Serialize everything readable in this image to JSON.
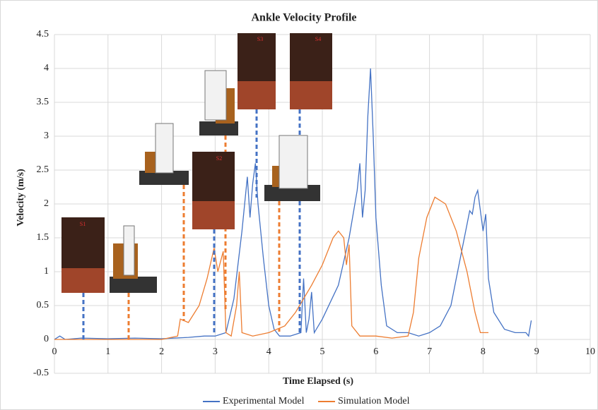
{
  "chart_data": {
    "type": "line",
    "title": "Ankle Velocity Profile",
    "x_label": "Time Elapsed (s)",
    "y_label": "Velocity (m/s)",
    "xlim": [
      0,
      10
    ],
    "xticks": [
      0,
      1,
      2,
      3,
      4,
      5,
      6,
      7,
      8,
      9,
      10
    ],
    "ylim": [
      -0.5,
      4.5
    ],
    "yticks": [
      -0.5,
      0,
      0.5,
      1,
      1.5,
      2,
      2.5,
      3,
      3.5,
      4,
      4.5
    ],
    "grid": true,
    "legend": "bottom",
    "annotations": [
      "S1",
      "S2",
      "S3",
      "S4"
    ],
    "series": [
      {
        "name": "Experimental Model",
        "color": "#4472c4",
        "x": [
          0,
          0.1,
          0.2,
          0.5,
          1.0,
          1.5,
          2.0,
          2.5,
          2.8,
          3.0,
          3.2,
          3.35,
          3.5,
          3.6,
          3.65,
          3.7,
          3.75,
          3.8,
          3.9,
          4.0,
          4.1,
          4.2,
          4.4,
          4.6,
          4.65,
          4.7,
          4.75,
          4.8,
          4.85,
          5.0,
          5.3,
          5.5,
          5.65,
          5.7,
          5.75,
          5.8,
          5.85,
          5.9,
          5.95,
          6.0,
          6.1,
          6.2,
          6.4,
          6.6,
          6.8,
          7.0,
          7.2,
          7.4,
          7.6,
          7.75,
          7.8,
          7.85,
          7.9,
          7.95,
          8.0,
          8.05,
          8.1,
          8.2,
          8.4,
          8.6,
          8.8,
          8.85,
          8.9
        ],
        "values": [
          0,
          0.05,
          0,
          0.02,
          0.01,
          0.02,
          0.01,
          0.03,
          0.05,
          0.05,
          0.1,
          0.6,
          1.6,
          2.4,
          1.8,
          2.3,
          2.6,
          2.0,
          1.2,
          0.5,
          0.15,
          0.05,
          0.05,
          0.1,
          0.9,
          0.1,
          0.3,
          0.7,
          0.1,
          0.3,
          0.8,
          1.5,
          2.2,
          2.6,
          1.8,
          2.2,
          3.3,
          4.0,
          3.0,
          1.8,
          0.8,
          0.2,
          0.1,
          0.1,
          0.05,
          0.1,
          0.2,
          0.5,
          1.3,
          1.9,
          1.85,
          2.1,
          2.2,
          1.9,
          1.6,
          1.85,
          0.9,
          0.4,
          0.15,
          0.1,
          0.1,
          0.05,
          0.28
        ]
      },
      {
        "name": "Simulation Model",
        "color": "#ed7d31",
        "x": [
          0,
          1.0,
          2.0,
          2.3,
          2.35,
          2.5,
          2.7,
          2.85,
          2.98,
          3.05,
          3.15,
          3.2,
          3.3,
          3.4,
          3.45,
          3.5,
          3.7,
          4.0,
          4.3,
          4.5,
          4.8,
          5.0,
          5.2,
          5.3,
          5.4,
          5.45,
          5.5,
          5.55,
          5.7,
          6.0,
          6.3,
          6.6,
          6.7,
          6.8,
          6.95,
          7.1,
          7.3,
          7.5,
          7.7,
          7.85,
          7.95,
          8.1
        ],
        "values": [
          0,
          0,
          0,
          0.05,
          0.3,
          0.25,
          0.5,
          0.9,
          1.35,
          1.0,
          1.3,
          0.1,
          0.05,
          0.5,
          1.0,
          0.1,
          0.05,
          0.1,
          0.2,
          0.4,
          0.8,
          1.1,
          1.5,
          1.6,
          1.5,
          1.1,
          1.4,
          0.2,
          0.05,
          0.05,
          0.02,
          0.05,
          0.4,
          1.2,
          1.8,
          2.1,
          2.0,
          1.6,
          1.0,
          0.4,
          0.1,
          0.1
        ]
      }
    ]
  }
}
